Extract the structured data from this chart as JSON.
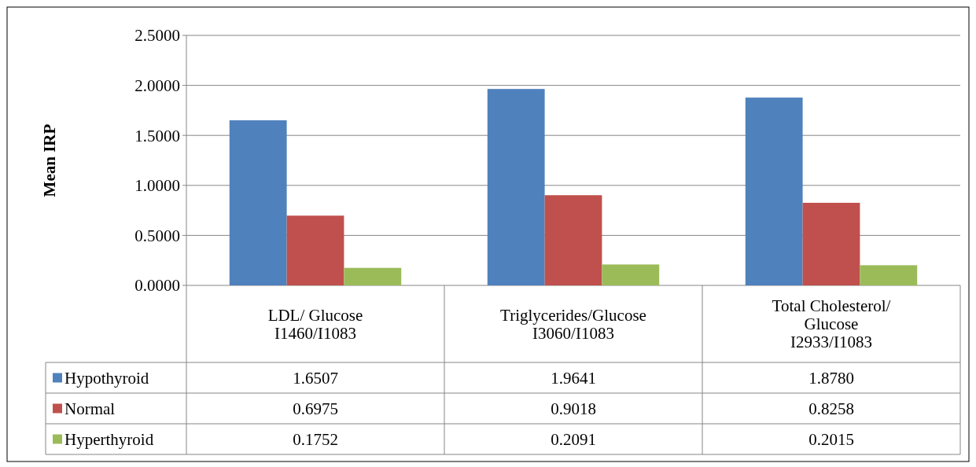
{
  "chart_data": {
    "type": "bar",
    "ylabel": "Mean IRP",
    "categories": [
      "LDL/ Glucose\nI1460/I1083",
      "Triglycerides/Glucose\nI3060/I1083",
      "Total Cholesterol/\nGlucose\nI2933/I1083"
    ],
    "series": [
      {
        "name": "Hypothyroid",
        "color": "#4f81bd",
        "values": [
          1.6507,
          1.9641,
          1.878
        ],
        "value_labels": [
          "1.6507",
          "1.9641",
          "1.8780"
        ]
      },
      {
        "name": "Normal",
        "color": "#c0504d",
        "values": [
          0.6975,
          0.9018,
          0.8258
        ],
        "value_labels": [
          "0.6975",
          "0.9018",
          "0.8258"
        ]
      },
      {
        "name": "Hyperthyroid",
        "color": "#9bbb59",
        "values": [
          0.1752,
          0.2091,
          0.2015
        ],
        "value_labels": [
          "0.1752",
          "0.2091",
          "0.2015"
        ]
      }
    ],
    "ylim": [
      0,
      2.5
    ],
    "yticks": [
      {
        "value": 0,
        "label": "0.0000"
      },
      {
        "value": 0.5,
        "label": "0.5000"
      },
      {
        "value": 1,
        "label": "1.0000"
      },
      {
        "value": 1.5,
        "label": "1.5000"
      },
      {
        "value": 2,
        "label": "2.0000"
      },
      {
        "value": 2.5,
        "label": "2.5000"
      }
    ],
    "grid": "y",
    "legend": "bottom"
  }
}
